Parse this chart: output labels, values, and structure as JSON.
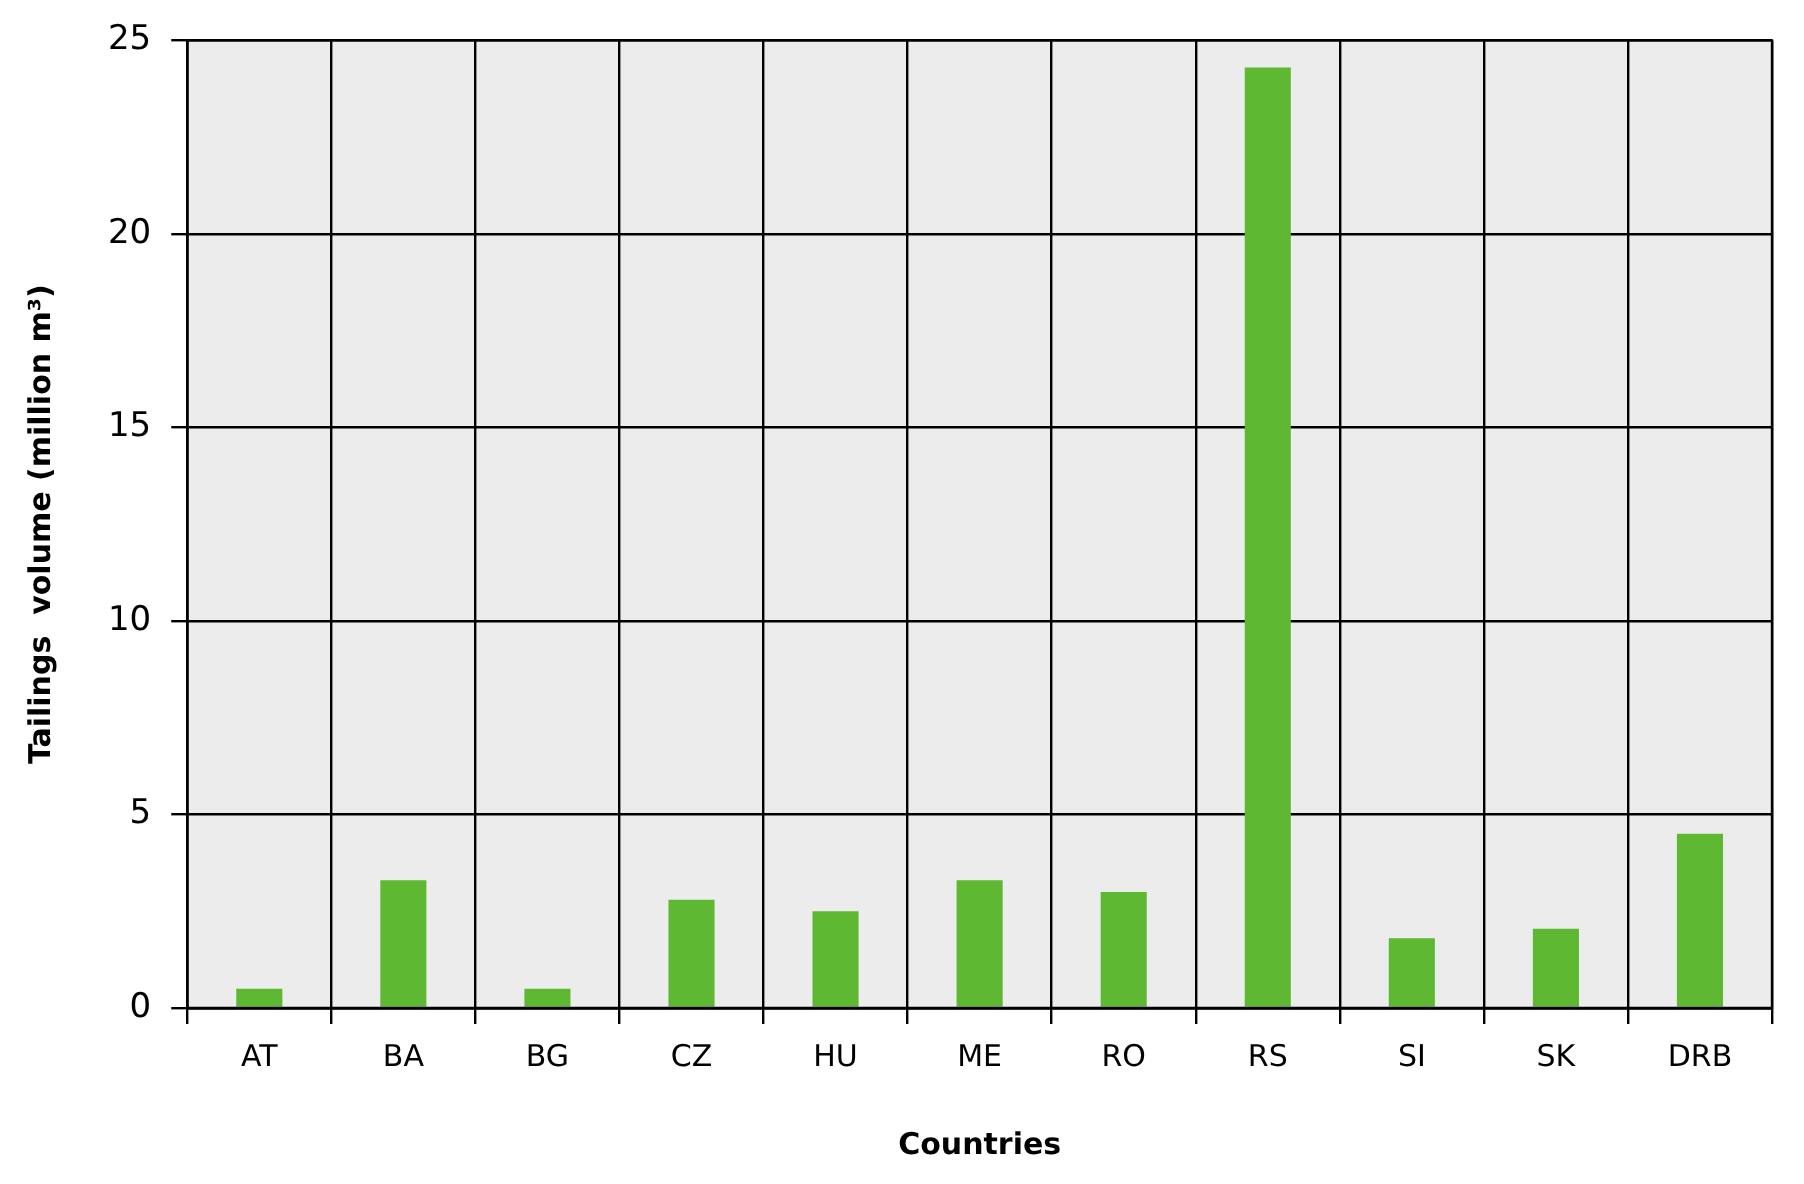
{
  "chart_data": {
    "type": "bar",
    "xlabel": "Countries",
    "ylabel": "Tailings  volume (million m³)",
    "categories": [
      "AT",
      "BA",
      "BG",
      "CZ",
      "HU",
      "ME",
      "RO",
      "RS",
      "SI",
      "SK",
      "DRB"
    ],
    "values": [
      0.5,
      3.3,
      0.5,
      2.8,
      2.5,
      3.3,
      3.0,
      24.3,
      1.8,
      2.05,
      4.5
    ],
    "color": "#5fb832",
    "ylim": [
      0,
      25
    ],
    "yticks": [
      0,
      5,
      10,
      15,
      20,
      25
    ],
    "grid": true,
    "legend": false
  }
}
